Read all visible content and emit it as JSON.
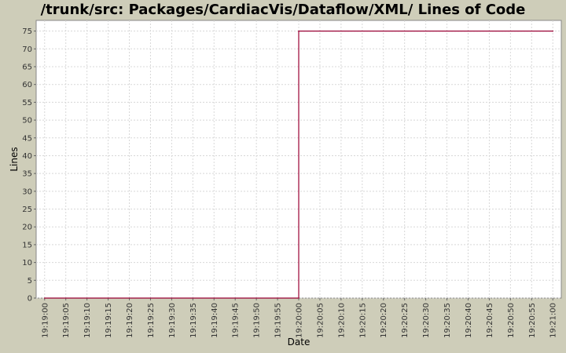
{
  "chart_data": {
    "type": "line",
    "title": "/trunk/src: Packages/CardiacVis/Dataflow/XML/ Lines of Code",
    "xlabel": "Date",
    "ylabel": "Lines",
    "x_ticks": [
      "19:19:00",
      "19:19:05",
      "19:19:10",
      "19:19:15",
      "19:19:20",
      "19:19:25",
      "19:19:30",
      "19:19:35",
      "19:19:40",
      "19:19:45",
      "19:19:50",
      "19:19:55",
      "19:20:00",
      "19:20:05",
      "19:20:10",
      "19:20:15",
      "19:20:20",
      "19:20:25",
      "19:20:30",
      "19:20:35",
      "19:20:40",
      "19:20:45",
      "19:20:50",
      "19:20:55",
      "19:21:00"
    ],
    "y_ticks": [
      0,
      5,
      10,
      15,
      20,
      25,
      30,
      35,
      40,
      45,
      50,
      55,
      60,
      65,
      70,
      75
    ],
    "ylim": [
      0,
      78
    ],
    "xlim": [
      "19:18:58",
      "19:21:02"
    ],
    "grid": true,
    "series": [
      {
        "color": "#990033",
        "step": true,
        "x": [
          "19:19:00",
          "19:20:00",
          "19:21:00"
        ],
        "values": [
          0,
          75,
          75
        ]
      }
    ]
  }
}
